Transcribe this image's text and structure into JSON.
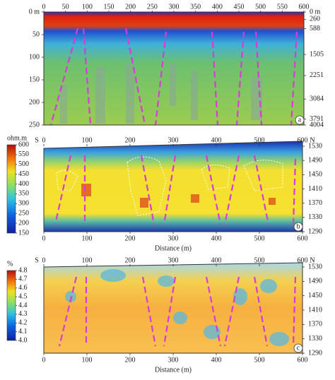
{
  "chart_data": [
    {
      "type": "heatmap",
      "panel_label": "a",
      "xlim": [
        0,
        600
      ],
      "xticks": [
        0,
        50,
        100,
        150,
        200,
        250,
        300,
        350,
        400,
        450,
        500,
        550,
        600
      ],
      "ylim": [
        0,
        250
      ],
      "yticks": [
        {
          "value": 0,
          "label": "0 m"
        },
        50,
        100,
        150,
        200,
        250
      ],
      "y2lim": [
        0,
        4004
      ],
      "y2ticks": [
        {
          "value": 0,
          "label": "0 m"
        },
        260,
        588,
        1505,
        2251,
        3084,
        3791,
        4004
      ]
    },
    {
      "type": "heatmap",
      "panel_label": "b",
      "left_label": "S",
      "right_label": "N",
      "xlabel": "Distance (m)",
      "colorbar_label": "ohm.m",
      "colorbar_lim": [
        150,
        600
      ],
      "colorbar_ticks": [
        150,
        200,
        250,
        300,
        350,
        400,
        450,
        500,
        550,
        600
      ],
      "xlim": [
        0,
        600
      ],
      "xticks": [
        0,
        100,
        200,
        300,
        400,
        500,
        600
      ],
      "y2lim": [
        1290,
        1530
      ],
      "y2ticks": [
        1290,
        1330,
        1370,
        1410,
        1450,
        1490,
        1530
      ]
    },
    {
      "type": "heatmap",
      "panel_label": "c",
      "left_label": "S",
      "right_label": "N",
      "xlabel": "Distance (m)",
      "colorbar_label": "%",
      "colorbar_lim": [
        4.0,
        4.8
      ],
      "colorbar_ticks": [
        {
          "value": 4.0,
          "label": "4.0"
        },
        4.1,
        4.2,
        4.3,
        4.4,
        4.5,
        4.6,
        4.7,
        {
          "value": 4.8,
          "label": "4.8"
        }
      ],
      "xlim": [
        0,
        600
      ],
      "xticks": [
        0,
        100,
        200,
        300,
        400,
        500,
        600
      ],
      "y2lim": [
        1290,
        1530
      ],
      "y2ticks": [
        1290,
        1330,
        1370,
        1410,
        1450,
        1490,
        1530
      ]
    }
  ]
}
